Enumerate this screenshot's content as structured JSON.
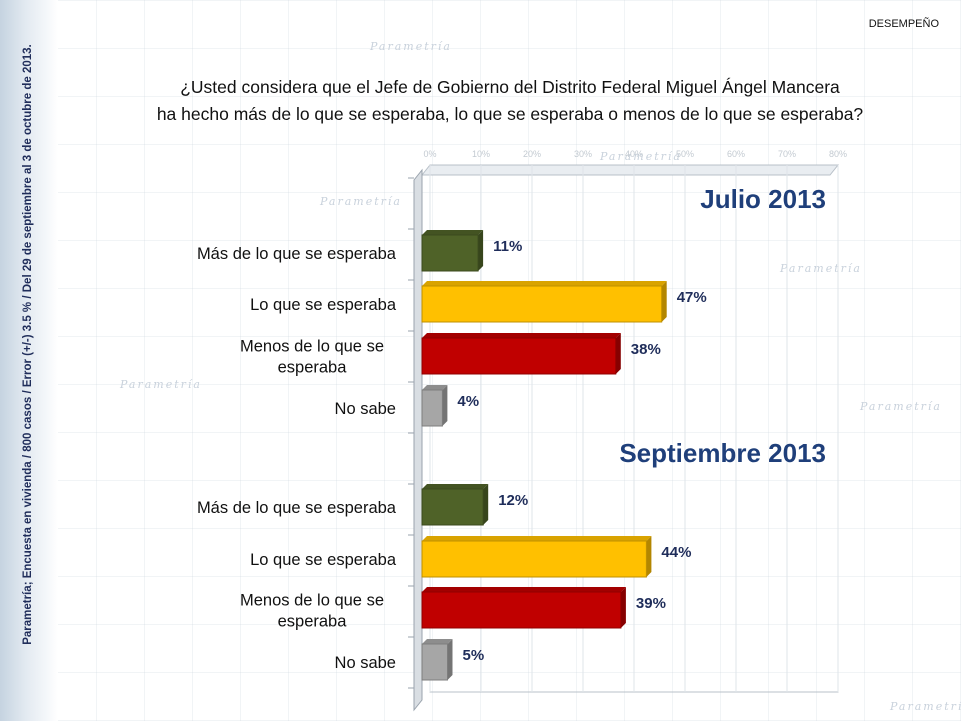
{
  "header": {
    "section_tag": "DESEMPEÑO",
    "side_note": "Parametría; Encuesta en vivienda / 800 casos / Error (+/-) 3.5 % / Del 29 de septiembre al 3 de octubre de 2013.",
    "question_line1": "¿Usted considera que el Jefe de Gobierno del Distrito Federal Miguel Ángel Mancera",
    "question_line2": "ha hecho más de lo que se esperaba, lo que se esperaba o menos de lo que se esperaba?"
  },
  "colors": {
    "mas": "#4f6228",
    "lo_que": "#ffc000",
    "menos": "#c00000",
    "no_sabe": "#a6a6a6",
    "group_title": "#1f3f7a"
  },
  "chart_data": {
    "type": "bar",
    "orientation": "horizontal",
    "xlim": [
      0,
      80
    ],
    "x_ticks": [
      "0%",
      "10%",
      "20%",
      "30%",
      "40%",
      "50%",
      "60%",
      "70%",
      "80%"
    ],
    "groups": [
      {
        "name": "Julio 2013",
        "categories": [
          "Más de lo que se esperaba",
          "Lo que se esperaba",
          "Menos de lo que se esperaba",
          "No sabe"
        ],
        "values": [
          11,
          47,
          38,
          4
        ],
        "labels": [
          "11%",
          "47%",
          "38%",
          "4%"
        ]
      },
      {
        "name": "Septiembre 2013",
        "categories": [
          "Más de lo que se esperaba",
          "Lo que se esperaba",
          "Menos de lo que se esperaba",
          "No sabe"
        ],
        "values": [
          12,
          44,
          39,
          5
        ],
        "labels": [
          "12%",
          "44%",
          "39%",
          "5%"
        ]
      }
    ]
  }
}
